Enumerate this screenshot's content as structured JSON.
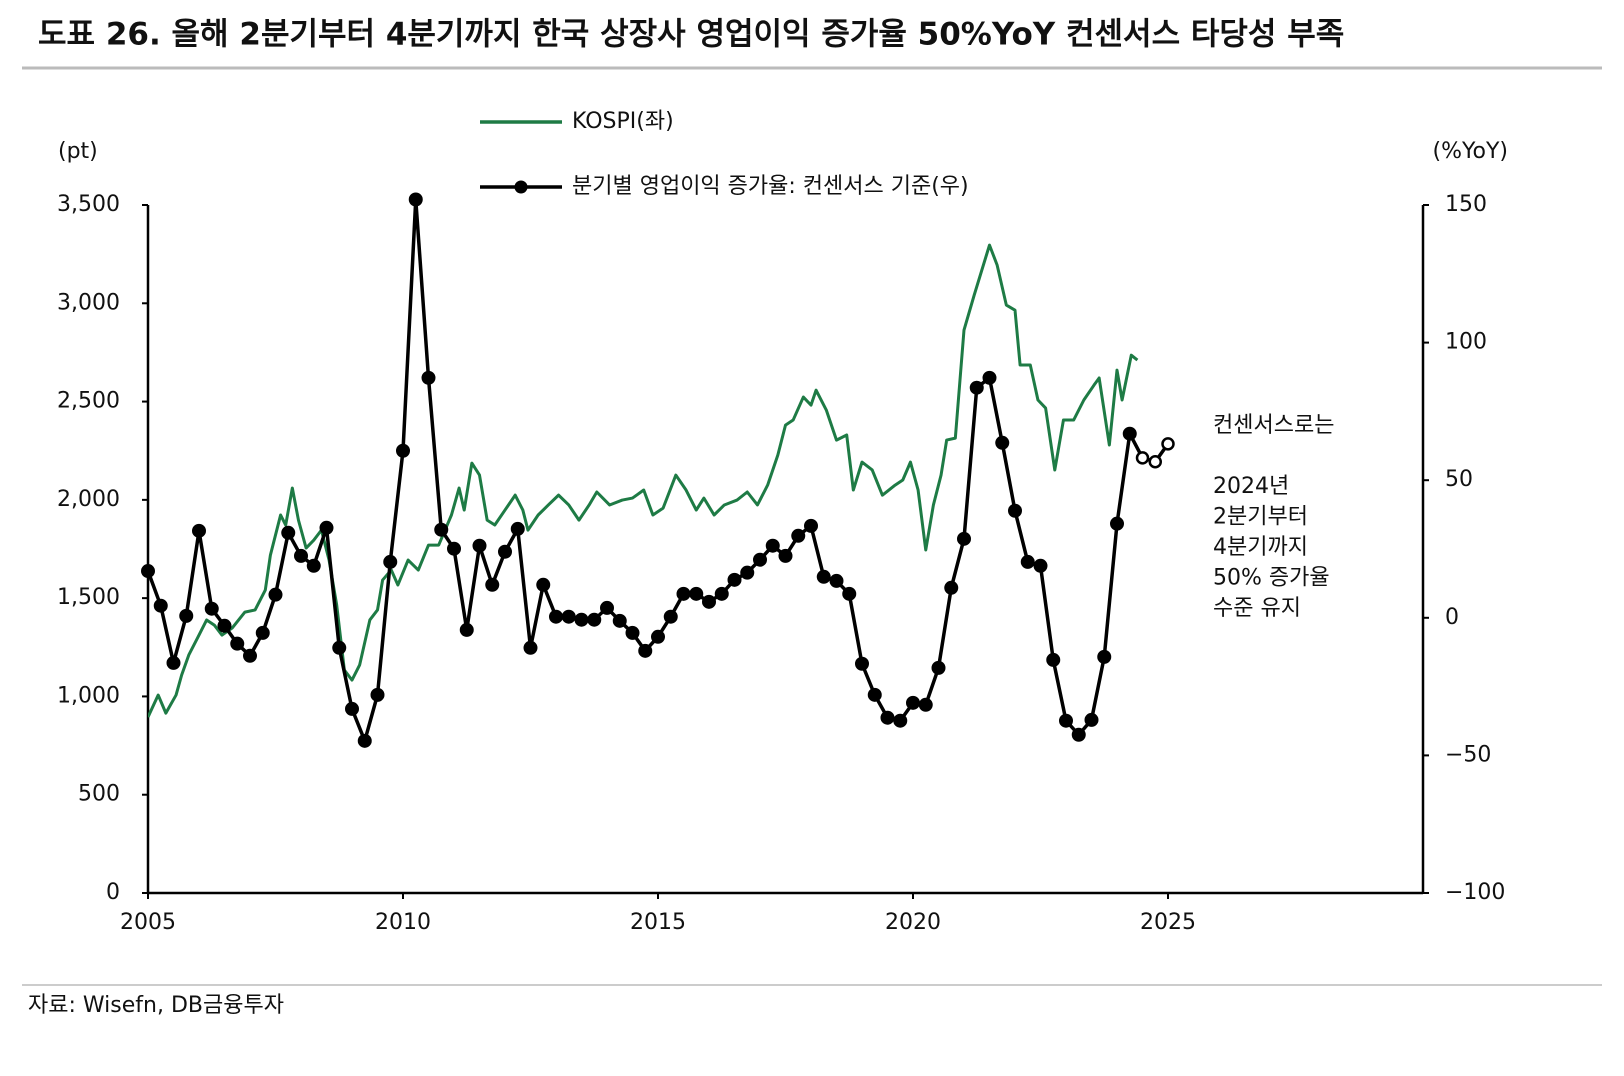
{
  "chart_data": {
    "type": "line",
    "title": "도표 26. 올해 2분기부터 4분기까지 한국 상장사 영업이익 증가율 50%YoY 컨센서스 타당성 부족",
    "y_label": "(pt)",
    "y2_label": "(%YoY)",
    "source": "자료: Wisefn, DB금융투자",
    "annotation": [
      "컨센서스로는",
      "2024년",
      "2분기부터",
      "4분기까지",
      "50% 증가율",
      "수준 유지"
    ],
    "legend": "top",
    "xlim": [
      2005,
      2030
    ],
    "xticks": [
      2005,
      2010,
      2015,
      2020,
      2025
    ],
    "ylim": [
      0,
      3500
    ],
    "yticks": [
      0,
      500,
      {
        "value": 1000,
        "label": "1,000"
      },
      {
        "value": 1500,
        "label": "1,500"
      },
      {
        "value": 2000,
        "label": "2,000"
      },
      {
        "value": 2500,
        "label": "2,500"
      },
      {
        "value": 3000,
        "label": "3,000"
      },
      {
        "value": 3500,
        "label": "3,500"
      }
    ],
    "y2lim": [
      -100,
      150
    ],
    "y2ticks": [
      {
        "value": -100,
        "label": "−100"
      },
      {
        "value": -50,
        "label": "−50"
      },
      0,
      50,
      100,
      150
    ],
    "series": [
      {
        "name": "KOSPI(좌)",
        "color": "#1e7b45",
        "markers": false,
        "x": [
          2005.0,
          2005.2,
          2005.35,
          2005.55,
          2005.66,
          2005.8,
          2006.0,
          2006.15,
          2006.3,
          2006.45,
          2006.65,
          2006.9,
          2007.1,
          2007.3,
          2007.4,
          2007.6,
          2007.7,
          2007.83,
          2007.95,
          2008.1,
          2008.25,
          2008.4,
          2008.55,
          2008.7,
          2008.85,
          2009.0,
          2009.15,
          2009.35,
          2009.5,
          2009.6,
          2009.77,
          2009.9,
          2010.1,
          2010.3,
          2010.5,
          2010.7,
          2010.95,
          2011.1,
          2011.2,
          2011.35,
          2011.5,
          2011.65,
          2011.8,
          2012.0,
          2012.2,
          2012.35,
          2012.45,
          2012.65,
          2012.85,
          2013.05,
          2013.25,
          2013.45,
          2013.65,
          2013.8,
          2014.05,
          2014.3,
          2014.5,
          2014.72,
          2014.9,
          2015.1,
          2015.35,
          2015.55,
          2015.75,
          2015.9,
          2016.1,
          2016.3,
          2016.55,
          2016.75,
          2016.95,
          2017.15,
          2017.35,
          2017.5,
          2017.65,
          2017.85,
          2018.0,
          2018.1,
          2018.3,
          2018.5,
          2018.7,
          2018.83,
          2019.0,
          2019.2,
          2019.4,
          2019.65,
          2019.8,
          2019.95,
          2020.1,
          2020.25,
          2020.4,
          2020.55,
          2020.66,
          2020.83,
          2021.0,
          2021.2,
          2021.35,
          2021.5,
          2021.65,
          2021.83,
          2022.0,
          2022.1,
          2022.3,
          2022.45,
          2022.6,
          2022.78,
          2022.95,
          2023.15,
          2023.35,
          2023.55,
          2023.65,
          2023.85,
          2024.0,
          2024.1,
          2024.28,
          2024.4
        ],
        "values": [
          895,
          1007,
          915,
          1007,
          1109,
          1211,
          1312,
          1389,
          1363,
          1312,
          1348,
          1429,
          1440,
          1541,
          1719,
          1923,
          1872,
          2060,
          1897,
          1755,
          1795,
          1846,
          1694,
          1465,
          1134,
          1083,
          1160,
          1389,
          1440,
          1592,
          1643,
          1567,
          1694,
          1643,
          1770,
          1770,
          1923,
          2060,
          1948,
          2187,
          2126,
          1897,
          1872,
          1948,
          2024,
          1948,
          1846,
          1923,
          1974,
          2024,
          1974,
          1897,
          1974,
          2040,
          1974,
          1999,
          2009,
          2050,
          1923,
          1958,
          2126,
          2050,
          1948,
          2009,
          1923,
          1974,
          1999,
          2040,
          1974,
          2075,
          2228,
          2380,
          2406,
          2523,
          2482,
          2558,
          2457,
          2304,
          2330,
          2050,
          2192,
          2152,
          2024,
          2075,
          2101,
          2192,
          2050,
          1745,
          1974,
          2126,
          2304,
          2314,
          2864,
          3042,
          3169,
          3296,
          3194,
          2991,
          2965,
          2686,
          2686,
          2508,
          2467,
          2152,
          2406,
          2406,
          2508,
          2584,
          2620,
          2279,
          2660,
          2508,
          2736,
          2711
        ]
      },
      {
        "name": "분기별 영업이익 증가율: 컨센서스 기준(우)",
        "color": "#000000",
        "axis": "y2",
        "markers": true,
        "open_markers_from": 2024.5,
        "x": [
          2005.0,
          2005.25,
          2005.5,
          2005.75,
          2006.0,
          2006.25,
          2006.5,
          2006.75,
          2007.0,
          2007.25,
          2007.5,
          2007.75,
          2008.0,
          2008.25,
          2008.5,
          2008.75,
          2009.0,
          2009.25,
          2009.5,
          2009.75,
          2010.0,
          2010.25,
          2010.5,
          2010.75,
          2011.0,
          2011.25,
          2011.5,
          2011.75,
          2012.0,
          2012.25,
          2012.5,
          2012.75,
          2013.0,
          2013.25,
          2013.5,
          2013.75,
          2014.0,
          2014.25,
          2014.5,
          2014.75,
          2015.0,
          2015.25,
          2015.5,
          2015.75,
          2016.0,
          2016.25,
          2016.5,
          2016.75,
          2017.0,
          2017.25,
          2017.5,
          2017.75,
          2018.0,
          2018.25,
          2018.5,
          2018.75,
          2019.0,
          2019.25,
          2019.5,
          2019.75,
          2020.0,
          2020.25,
          2020.5,
          2020.75,
          2021.0,
          2021.25,
          2021.5,
          2021.75,
          2022.0,
          2022.25,
          2022.5,
          2022.75,
          2023.0,
          2023.25,
          2023.5,
          2023.75,
          2024.0,
          2024.25,
          2024.5,
          2024.75,
          2025.0
        ],
        "values": [
          17,
          4.4,
          -16.4,
          0.7,
          31.6,
          3.3,
          -2.9,
          -9.4,
          -13.8,
          -5.5,
          8.4,
          30.9,
          22.5,
          18.9,
          32.7,
          -10.9,
          -33.1,
          -44.7,
          -28,
          20.3,
          60.7,
          152,
          87.2,
          32,
          25.1,
          -4.4,
          26.2,
          12,
          24,
          32.3,
          -10.9,
          12,
          0.4,
          0.4,
          -0.7,
          -0.7,
          3.6,
          -1.1,
          -5.5,
          -12,
          -6.9,
          0.4,
          8.7,
          8.7,
          5.8,
          8.7,
          13.8,
          16.4,
          21.1,
          26.2,
          22.5,
          29.8,
          33.4,
          14.9,
          13.4,
          8.7,
          -16.7,
          -28,
          -36.3,
          -37.4,
          -30.9,
          -31.6,
          -18.2,
          10.9,
          28.7,
          83.6,
          87.2,
          63.6,
          38.9,
          20.3,
          18.9,
          -15.3,
          -37.4,
          -42.5,
          -37.1,
          -14.2,
          34.2,
          66.9,
          58.1,
          56.7,
          63.2
        ]
      }
    ]
  }
}
